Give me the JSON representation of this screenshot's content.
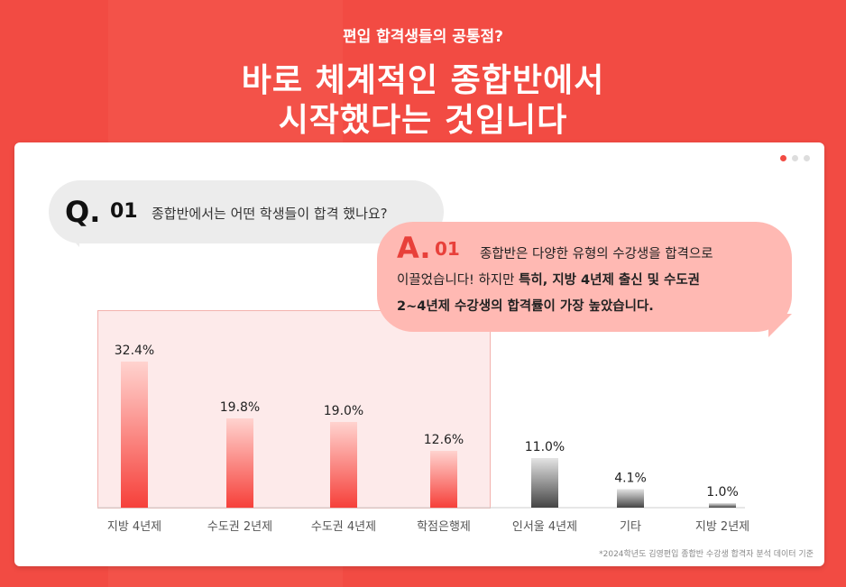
{
  "header": {
    "subtitle": "편입 합격생들의 공통점?",
    "title_line1": "바로 체계적인 종합반에서",
    "title_line2": "시작했다는 것입니다"
  },
  "question": {
    "mark": "Q.",
    "number": "01",
    "text": "종합반에서는 어떤 학생들이 합격 했나요?"
  },
  "answer": {
    "mark": "A.",
    "number": "01",
    "line1": "종합반은 다양한 유형의 수강생을 합격으로",
    "line2_plain": "이끌었습니다! 하지만 ",
    "line2_bold": "특히, 지방 4년제 출신 및 수도권",
    "line3_bold": "2~4년제 수강생의 합격률이 가장 높았습니다."
  },
  "colors": {
    "brand": "#f24b43",
    "highlight_bar": "#f6403a",
    "gray_bar": "#555555",
    "answer_bubble": "#ffb9b3",
    "question_bubble": "#ececec"
  },
  "pager": {
    "count": 3,
    "active": 0
  },
  "chart_data": {
    "type": "bar",
    "categories": [
      "지방 4년제",
      "수도권 2년제",
      "수도권 4년제",
      "학점은행제",
      "인서울 4년제",
      "기타",
      "지방 2년제"
    ],
    "values": [
      32.4,
      19.8,
      19.0,
      12.6,
      11.0,
      4.1,
      1.0
    ],
    "value_labels": [
      "32.4%",
      "19.8%",
      "19.0%",
      "12.6%",
      "11.0%",
      "4.1%",
      "1.0%"
    ],
    "highlighted": [
      true,
      true,
      true,
      true,
      false,
      false,
      false
    ],
    "ylim": [
      0,
      35
    ],
    "grid": false
  },
  "footnote": "*2024학년도 김영편입 종합반 수강생 합격자 분석 데이터 기준"
}
